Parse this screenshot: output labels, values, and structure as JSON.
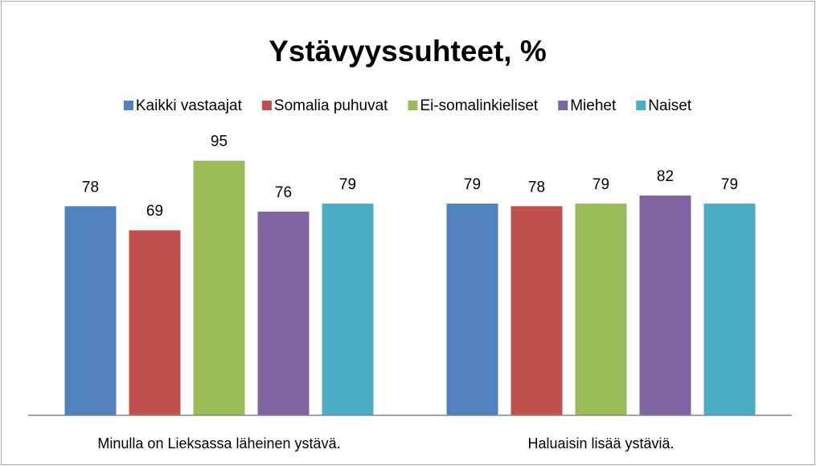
{
  "chart_data": {
    "type": "bar",
    "title": "Ystävyyssuhteet, %",
    "categories": [
      "Minulla on Lieksassa läheinen ystävä.",
      "Haluaisin lisää ystäviä."
    ],
    "series": [
      {
        "name": "Kaikki vastaajat",
        "color": "#4f81bd",
        "values": [
          78,
          79
        ]
      },
      {
        "name": "Somalia puhuvat",
        "color": "#c0504d",
        "values": [
          69,
          78
        ]
      },
      {
        "name": "Ei-somalinkieliset",
        "color": "#9bbb59",
        "values": [
          95,
          79
        ]
      },
      {
        "name": "Miehet",
        "color": "#8064a2",
        "values": [
          76,
          82
        ]
      },
      {
        "name": "Naiset",
        "color": "#4bacc6",
        "values": [
          79,
          79
        ]
      }
    ],
    "ylim": [
      0,
      100
    ],
    "legend": "top"
  }
}
